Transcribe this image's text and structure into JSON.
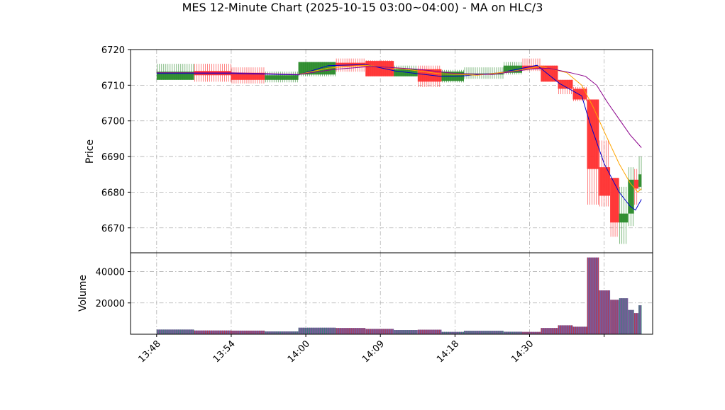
{
  "chart_data": {
    "type": "candlestick",
    "title": "MES 12-Minute Chart (2025-10-15 03:00~04:00) - MA on HLC/3",
    "price_panel": {
      "ylabel": "Price",
      "ylim": [
        6663,
        6720
      ],
      "yticks": [
        6670,
        6680,
        6690,
        6700,
        6710,
        6720
      ]
    },
    "volume_panel": {
      "ylabel": "Volume",
      "ylim": [
        0,
        52000
      ],
      "yticks": [
        20000,
        40000
      ],
      "ytick_labels": [
        "20000",
        "40000"
      ]
    },
    "x_range": [
      -0.35,
      6.65
    ],
    "xticks": [
      0,
      1,
      2,
      3,
      4,
      5,
      6
    ],
    "xtick_labels": [
      "13:48",
      "13:54",
      "14:00",
      "14:09",
      "14:18",
      "14:30",
      ""
    ],
    "grid": true,
    "colors": {
      "up": "#2a8a2a",
      "down": "#ff3030",
      "volume": "#7a5a9a",
      "volume_up": "#2a8a70",
      "ma_fast": "#0000cc",
      "ma_mid": "#ffa500",
      "ma_slow": "#8b008b",
      "grid": "#b0b0b0"
    },
    "candles": [
      {
        "x0": 0.0,
        "x1": 0.5,
        "open": 6711.5,
        "close": 6713.8,
        "high": 6716.0,
        "low": 6711.5,
        "volume": 3000
      },
      {
        "x0": 0.5,
        "x1": 1.0,
        "open": 6714.0,
        "close": 6712.8,
        "high": 6716.0,
        "low": 6711.0,
        "volume": 2400
      },
      {
        "x0": 1.0,
        "x1": 1.45,
        "open": 6713.5,
        "close": 6711.5,
        "high": 6715.0,
        "low": 6710.5,
        "volume": 2300
      },
      {
        "x0": 1.45,
        "x1": 1.9,
        "open": 6711.5,
        "close": 6712.8,
        "high": 6713.8,
        "low": 6710.8,
        "volume": 1800
      },
      {
        "x0": 1.9,
        "x1": 2.4,
        "open": 6713.0,
        "close": 6716.5,
        "high": 6716.5,
        "low": 6712.5,
        "volume": 4200
      },
      {
        "x0": 2.4,
        "x1": 2.8,
        "open": 6716.3,
        "close": 6715.3,
        "high": 6717.5,
        "low": 6713.8,
        "volume": 4000
      },
      {
        "x0": 2.8,
        "x1": 3.18,
        "open": 6716.8,
        "close": 6712.5,
        "high": 6717.0,
        "low": 6712.5,
        "volume": 3400
      },
      {
        "x0": 3.18,
        "x1": 3.5,
        "open": 6712.5,
        "close": 6714.5,
        "high": 6715.5,
        "low": 6712.5,
        "volume": 2700
      },
      {
        "x0": 3.5,
        "x1": 3.82,
        "open": 6714.5,
        "close": 6711.0,
        "high": 6715.5,
        "low": 6709.5,
        "volume": 2900
      },
      {
        "x0": 3.82,
        "x1": 4.12,
        "open": 6711.2,
        "close": 6713.8,
        "high": 6714.3,
        "low": 6710.8,
        "volume": 1500
      },
      {
        "x0": 4.12,
        "x1": 4.65,
        "open": 6713.0,
        "close": 6713.3,
        "high": 6715.0,
        "low": 6711.8,
        "volume": 2200
      },
      {
        "x0": 4.65,
        "x1": 4.9,
        "open": 6713.5,
        "close": 6715.5,
        "high": 6716.5,
        "low": 6713.0,
        "volume": 1600
      },
      {
        "x0": 4.9,
        "x1": 5.15,
        "open": 6715.5,
        "close": 6714.5,
        "high": 6717.5,
        "low": 6714.0,
        "volume": 1500
      },
      {
        "x0": 5.15,
        "x1": 5.38,
        "open": 6715.5,
        "close": 6711.0,
        "high": 6715.5,
        "low": 6711.0,
        "volume": 4000
      },
      {
        "x0": 5.38,
        "x1": 5.58,
        "open": 6711.5,
        "close": 6709.0,
        "high": 6711.5,
        "low": 6707.5,
        "volume": 5700
      },
      {
        "x0": 5.58,
        "x1": 5.77,
        "open": 6709.0,
        "close": 6706.0,
        "high": 6709.5,
        "low": 6705.5,
        "volume": 4800
      },
      {
        "x0": 5.77,
        "x1": 5.93,
        "open": 6706.0,
        "close": 6686.5,
        "high": 6706.0,
        "low": 6676.5,
        "volume": 49000
      },
      {
        "x0": 5.93,
        "x1": 6.08,
        "open": 6687.0,
        "close": 6679.0,
        "high": 6694.5,
        "low": 6676.0,
        "volume": 28000
      },
      {
        "x0": 6.08,
        "x1": 6.2,
        "open": 6684.0,
        "close": 6671.5,
        "high": 6684.0,
        "low": 6667.5,
        "volume": 22000
      },
      {
        "x0": 6.2,
        "x1": 6.32,
        "open": 6671.5,
        "close": 6674.0,
        "high": 6681.5,
        "low": 6665.5,
        "volume": 23000
      },
      {
        "x0": 6.32,
        "x1": 6.4,
        "open": 6674.0,
        "close": 6683.5,
        "high": 6687.0,
        "low": 6670.5,
        "volume": 15500
      },
      {
        "x0": 6.4,
        "x1": 6.46,
        "open": 6683.5,
        "close": 6681.0,
        "high": 6686.5,
        "low": 6676.5,
        "volume": 13500
      },
      {
        "x0": 6.46,
        "x1": 6.5,
        "open": 6681.5,
        "close": 6685.0,
        "high": 6690.0,
        "low": 6680.5,
        "volume": 18500
      }
    ],
    "ma_lines": [
      {
        "color": "#0000cc",
        "points": [
          [
            0.0,
            6713.3
          ],
          [
            1.0,
            6713.3
          ],
          [
            1.9,
            6712.9
          ],
          [
            2.3,
            6715.5
          ],
          [
            2.8,
            6715.8
          ],
          [
            3.2,
            6714.0
          ],
          [
            3.8,
            6712.5
          ],
          [
            4.1,
            6712.6
          ],
          [
            4.6,
            6713.5
          ],
          [
            5.1,
            6715.6
          ],
          [
            5.4,
            6710.5
          ],
          [
            5.7,
            6707.0
          ],
          [
            5.8,
            6700.0
          ],
          [
            6.0,
            6688.0
          ],
          [
            6.2,
            6680.0
          ],
          [
            6.35,
            6676.0
          ],
          [
            6.42,
            6675.0
          ],
          [
            6.5,
            6678.0
          ]
        ]
      },
      {
        "color": "#ffa500",
        "points": [
          [
            1.9,
            6713.0
          ],
          [
            2.3,
            6714.8
          ],
          [
            2.8,
            6715.6
          ],
          [
            3.3,
            6714.6
          ],
          [
            3.8,
            6713.2
          ],
          [
            4.3,
            6712.8
          ],
          [
            4.8,
            6714.0
          ],
          [
            5.15,
            6715.3
          ],
          [
            5.5,
            6713.5
          ],
          [
            5.7,
            6710.0
          ],
          [
            5.85,
            6704.0
          ],
          [
            6.0,
            6697.0
          ],
          [
            6.2,
            6688.0
          ],
          [
            6.35,
            6682.5
          ],
          [
            6.45,
            6680.0
          ],
          [
            6.5,
            6681.0
          ]
        ]
      },
      {
        "color": "#8b008b",
        "points": [
          [
            0.0,
            6713.5
          ],
          [
            1.0,
            6713.5
          ],
          [
            1.9,
            6713.0
          ],
          [
            2.4,
            6714.5
          ],
          [
            2.9,
            6715.3
          ],
          [
            3.5,
            6714.5
          ],
          [
            4.0,
            6713.3
          ],
          [
            4.5,
            6713.0
          ],
          [
            5.0,
            6714.5
          ],
          [
            5.25,
            6714.8
          ],
          [
            5.55,
            6713.5
          ],
          [
            5.75,
            6712.5
          ],
          [
            5.9,
            6710.0
          ],
          [
            6.05,
            6705.0
          ],
          [
            6.2,
            6700.5
          ],
          [
            6.35,
            6696.0
          ],
          [
            6.5,
            6692.5
          ]
        ]
      }
    ]
  }
}
